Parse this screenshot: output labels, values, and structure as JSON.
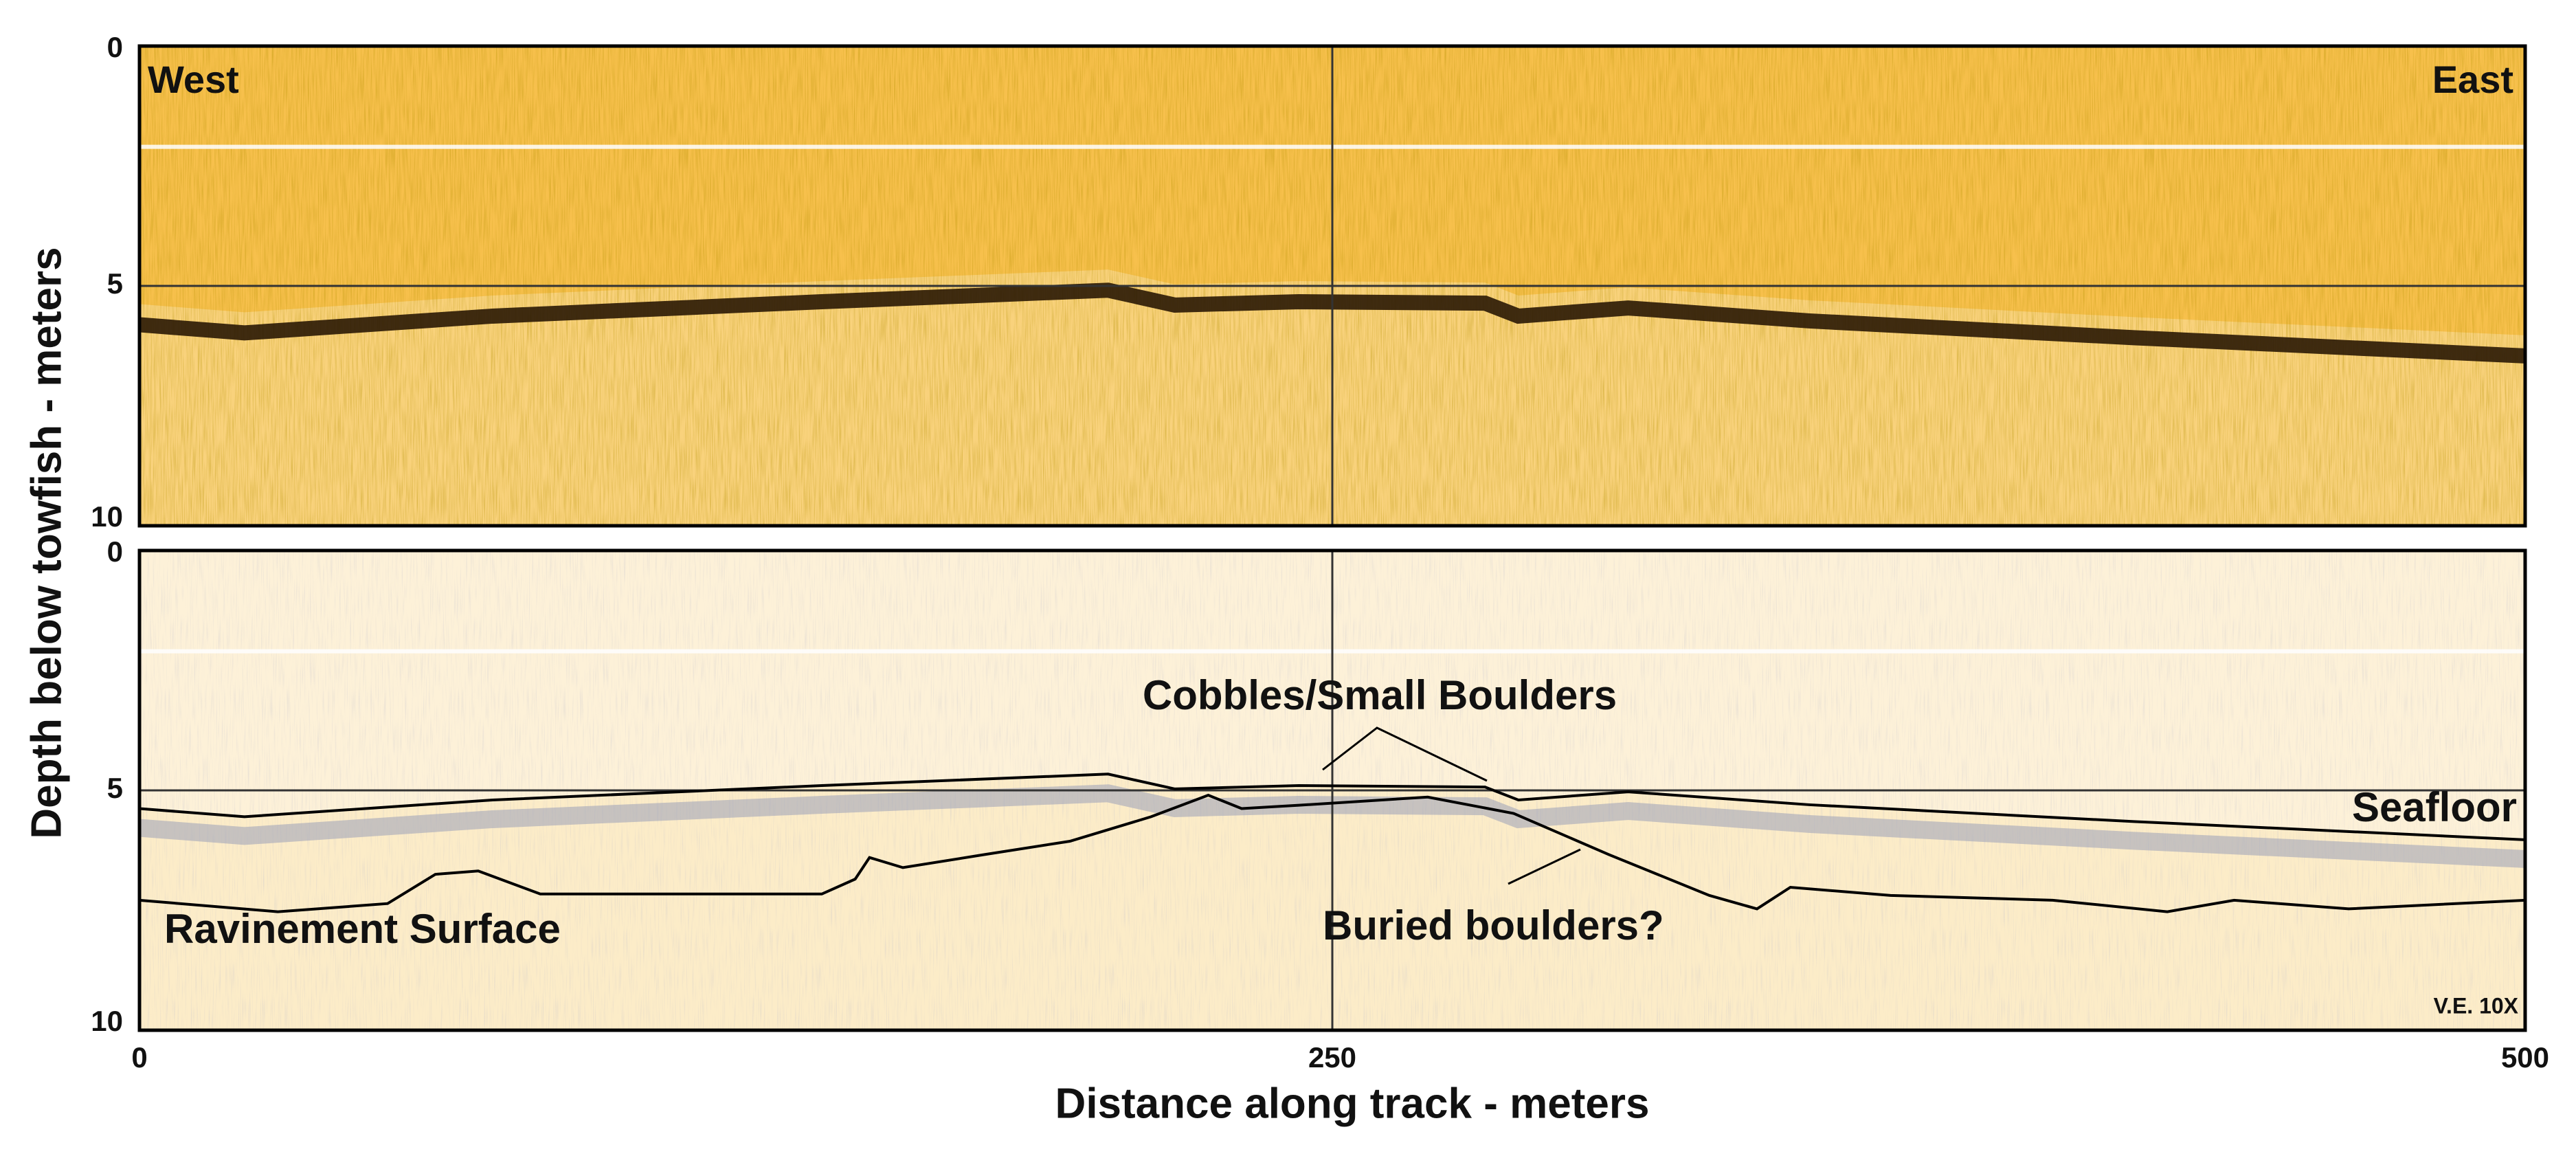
{
  "chart_data": {
    "type": "profile",
    "xlabel": "Distance along track - meters",
    "ylabel": "Depth below towfish - meters",
    "xlim": [
      0,
      500
    ],
    "xticks": [
      0,
      250,
      500
    ],
    "panels": [
      {
        "ylim": [
          0,
          10
        ],
        "yticks": [
          0,
          5,
          10
        ],
        "annotations": [
          "West",
          "East"
        ]
      },
      {
        "ylim": [
          0,
          10
        ],
        "yticks": [
          0,
          5,
          10
        ],
        "annotations": [
          "Cobbles/Small Boulders",
          "Buried boulders?",
          "V.E. 10X"
        ],
        "series": [
          {
            "name": "Seafloor",
            "color": "#000000",
            "x": [
              0,
              22,
              74,
              143,
              203,
              217,
              243,
              282,
              289,
              312,
              350,
              418,
              500
            ],
            "values": [
              5.38,
              5.55,
              5.2,
              4.9,
              4.66,
              4.97,
              4.9,
              4.93,
              5.2,
              5.03,
              5.3,
              5.65,
              6.03
            ]
          },
          {
            "name": "Ravinement Surface",
            "color": "#000000",
            "x": [
              0,
              29,
              52,
              62,
              71,
              84,
              143,
              150,
              153,
              160,
              177,
              195,
              212,
              224,
              231,
              243,
              270,
              288,
              308,
              329,
              339,
              346,
              367,
              401,
              425,
              439,
              463,
              500
            ],
            "values": [
              7.29,
              7.53,
              7.36,
              6.75,
              6.68,
              7.16,
              7.16,
              6.85,
              6.4,
              6.61,
              6.34,
              6.06,
              5.55,
              5.1,
              5.38,
              5.31,
              5.14,
              5.48,
              6.34,
              7.19,
              7.47,
              7.02,
              7.19,
              7.29,
              7.53,
              7.29,
              7.47,
              7.29
            ]
          }
        ]
      }
    ]
  }
}
